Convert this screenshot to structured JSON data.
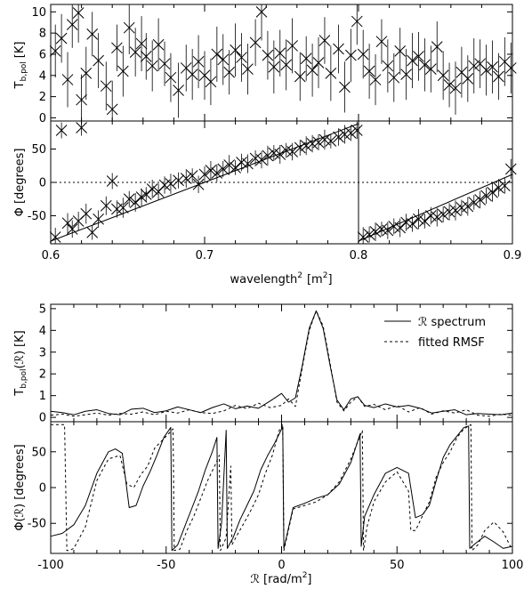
{
  "chart_data": [
    {
      "type": "scatter",
      "panel": "top-upper",
      "xlim": [
        0.6,
        0.9
      ],
      "ylim": [
        -0.3,
        10.7
      ],
      "yticks": [
        0,
        2,
        4,
        6,
        8,
        10
      ],
      "ylabel": "T",
      "ylabel_sub": "b,pol",
      "ylabel_unit": "[K]",
      "marker": "x",
      "error_bars": true,
      "series": [
        {
          "x": [
            0.603,
            0.607,
            0.611,
            0.614,
            0.618,
            0.62,
            0.623,
            0.627,
            0.631,
            0.636,
            0.64,
            0.643,
            0.647,
            0.651,
            0.655,
            0.659,
            0.662,
            0.666,
            0.67,
            0.674,
            0.678,
            0.683,
            0.688,
            0.692,
            0.696,
            0.7,
            0.704,
            0.708,
            0.712,
            0.716,
            0.72,
            0.724,
            0.728,
            0.733,
            0.737,
            0.741,
            0.745,
            0.749,
            0.753,
            0.757,
            0.762,
            0.766,
            0.77,
            0.774,
            0.778,
            0.782,
            0.787,
            0.791,
            0.795,
            0.799,
            0.803,
            0.807,
            0.811,
            0.815,
            0.819,
            0.823,
            0.827,
            0.831,
            0.835,
            0.839,
            0.843,
            0.847,
            0.851,
            0.855,
            0.859,
            0.863,
            0.867,
            0.871,
            0.875,
            0.879,
            0.883,
            0.887,
            0.891,
            0.895,
            0.899
          ],
          "y": [
            6.3,
            7.5,
            3.6,
            8.8,
            9.9,
            1.7,
            4.2,
            7.9,
            5.4,
            3.0,
            0.8,
            6.6,
            4.4,
            8.5,
            6.2,
            7.0,
            5.8,
            4.9,
            6.9,
            5.1,
            3.8,
            2.6,
            4.7,
            4.1,
            5.3,
            4.0,
            3.4,
            6.0,
            5.5,
            4.3,
            6.4,
            5.7,
            4.6,
            7.1,
            10.0,
            5.9,
            4.8,
            6.1,
            5.0,
            6.8,
            3.9,
            5.6,
            4.5,
            5.2,
            7.3,
            4.2,
            6.5,
            2.9,
            5.9,
            9.1,
            6.0,
            4.4,
            3.6,
            7.2,
            4.9,
            3.8,
            6.3,
            4.1,
            5.4,
            5.8,
            5.0,
            4.6,
            6.7,
            4.0,
            3.1,
            2.8,
            4.3,
            3.7,
            4.9,
            5.1,
            4.5,
            4.8,
            3.9,
            5.3,
            4.7
          ],
          "err": [
            2.5,
            2.3,
            2.6,
            2.2,
            2.8,
            2.4,
            2.5,
            2.1,
            2.6,
            2.3,
            2.7,
            2.2,
            2.4,
            2.5,
            2.3,
            2.6,
            2.2,
            2.4,
            2.5,
            2.1,
            2.3,
            2.6,
            2.2,
            2.4,
            2.5,
            2.3,
            2.2,
            2.6,
            2.4,
            2.1,
            2.5,
            2.3,
            2.4,
            2.2,
            2.7,
            2.3,
            2.5,
            2.2,
            2.4,
            2.6,
            2.3,
            2.1,
            2.5,
            2.4,
            2.2,
            2.6,
            2.3,
            2.4,
            2.5,
            2.2,
            2.3,
            2.6,
            2.4,
            2.1,
            2.5,
            2.3,
            2.2,
            2.4,
            2.6,
            2.3,
            2.5,
            2.2,
            2.4,
            2.3,
            2.1,
            2.5,
            2.4,
            2.2,
            2.6,
            2.3,
            2.4,
            2.5,
            2.2,
            2.3,
            2.4
          ]
        }
      ]
    },
    {
      "type": "scatter",
      "panel": "top-lower",
      "xlim": [
        0.6,
        0.9
      ],
      "ylim": [
        -92,
        92
      ],
      "xticks": [
        0.6,
        0.7,
        0.8,
        0.9
      ],
      "xtick_labels": [
        "0.6",
        "0.7",
        "0.8",
        "0.9"
      ],
      "yticks": [
        -50,
        0,
        50
      ],
      "xlabel": "wavelength",
      "xlabel_sup": "2",
      "xlabel_unit_open": "[m",
      "xlabel_unit_sup": "2",
      "xlabel_unit_close": "]",
      "ylabel": "Φ  [degrees]",
      "zero_line": "dotted",
      "marker": "x",
      "error_bars": true,
      "fit_line_x": [
        0.6,
        0.8,
        0.8,
        0.9
      ],
      "fit_line_y": [
        -88,
        88,
        -88,
        12
      ],
      "series": [
        {
          "x": [
            0.603,
            0.607,
            0.611,
            0.614,
            0.618,
            0.62,
            0.623,
            0.627,
            0.631,
            0.636,
            0.64,
            0.643,
            0.647,
            0.651,
            0.655,
            0.659,
            0.662,
            0.666,
            0.67,
            0.674,
            0.678,
            0.683,
            0.688,
            0.692,
            0.696,
            0.7,
            0.704,
            0.708,
            0.712,
            0.716,
            0.72,
            0.724,
            0.728,
            0.733,
            0.737,
            0.741,
            0.745,
            0.749,
            0.753,
            0.757,
            0.762,
            0.766,
            0.77,
            0.774,
            0.778,
            0.782,
            0.787,
            0.791,
            0.795,
            0.799,
            0.803,
            0.807,
            0.811,
            0.815,
            0.819,
            0.823,
            0.827,
            0.831,
            0.835,
            0.839,
            0.843,
            0.847,
            0.851,
            0.855,
            0.859,
            0.863,
            0.867,
            0.871,
            0.875,
            0.879,
            0.883,
            0.887,
            0.891,
            0.895,
            0.899
          ],
          "y": [
            -82,
            78,
            -61,
            -70,
            -58,
            82,
            -47,
            -75,
            -55,
            -35,
            2,
            -40,
            -38,
            -25,
            -30,
            -22,
            -18,
            -10,
            -14,
            -4,
            -2,
            3,
            6,
            10,
            -3,
            12,
            18,
            14,
            20,
            26,
            22,
            30,
            28,
            36,
            34,
            40,
            44,
            42,
            48,
            46,
            52,
            55,
            58,
            60,
            64,
            62,
            68,
            72,
            74,
            78,
            -82,
            -78,
            -74,
            -70,
            -72,
            -66,
            -68,
            -60,
            -62,
            -55,
            -58,
            -50,
            -52,
            -48,
            -44,
            -42,
            -38,
            -36,
            -30,
            -26,
            -20,
            -15,
            -8,
            -5,
            20
          ],
          "err": [
            14,
            12,
            15,
            13,
            14,
            12,
            15,
            11,
            13,
            14,
            12,
            13,
            15,
            12,
            14,
            13,
            11,
            14,
            12,
            13,
            15,
            12,
            14,
            11,
            13,
            12,
            14,
            13,
            12,
            15,
            11,
            13,
            14,
            12,
            13,
            15,
            12,
            14,
            11,
            13,
            12,
            14,
            13,
            12,
            15,
            11,
            13,
            14,
            12,
            13,
            15,
            12,
            14,
            11,
            13,
            12,
            14,
            13,
            12,
            15,
            11,
            13,
            14,
            12,
            13,
            15,
            12,
            14,
            11,
            13,
            12,
            14,
            13,
            12,
            15
          ]
        }
      ]
    },
    {
      "type": "line",
      "panel": "bottom-upper",
      "xlim": [
        -100,
        100
      ],
      "ylim": [
        -0.2,
        5.2
      ],
      "yticks": [
        0,
        1,
        2,
        3,
        4,
        5
      ],
      "ylabel": "T",
      "ylabel_sub": "b,pol",
      "ylabel_arg": "(ℛ)",
      "ylabel_unit": "[K]",
      "legend_placement": "top-right",
      "series": [
        {
          "name": "ℛ spectrum",
          "style": "solid",
          "x": [
            -100,
            -95,
            -90,
            -85,
            -80,
            -75,
            -70,
            -65,
            -60,
            -55,
            -50,
            -45,
            -40,
            -35,
            -30,
            -25,
            -20,
            -15,
            -10,
            -5,
            0,
            3,
            6,
            9,
            12,
            15,
            18,
            21,
            24,
            27,
            30,
            33,
            36,
            40,
            45,
            50,
            55,
            60,
            65,
            70,
            75,
            80,
            85,
            90,
            95,
            100
          ],
          "y": [
            0.28,
            0.22,
            0.12,
            0.28,
            0.35,
            0.18,
            0.12,
            0.38,
            0.42,
            0.22,
            0.3,
            0.48,
            0.35,
            0.22,
            0.45,
            0.62,
            0.4,
            0.52,
            0.42,
            0.75,
            1.1,
            0.7,
            0.9,
            2.4,
            4.1,
            4.9,
            4.1,
            2.4,
            0.8,
            0.35,
            0.85,
            0.95,
            0.55,
            0.45,
            0.62,
            0.48,
            0.55,
            0.42,
            0.2,
            0.28,
            0.35,
            0.12,
            0.18,
            0.15,
            0.12,
            0.2
          ]
        },
        {
          "name": "fitted RMSF",
          "style": "dashed",
          "x": [
            -100,
            -95,
            -90,
            -85,
            -80,
            -75,
            -70,
            -65,
            -60,
            -55,
            -50,
            -45,
            -40,
            -35,
            -30,
            -25,
            -20,
            -15,
            -10,
            -5,
            0,
            3,
            6,
            9,
            12,
            15,
            18,
            21,
            24,
            27,
            30,
            33,
            36,
            40,
            45,
            50,
            55,
            60,
            65,
            70,
            75,
            80,
            85,
            90,
            95,
            100
          ],
          "y": [
            0.1,
            0.15,
            0.05,
            0.12,
            0.2,
            0.1,
            0.18,
            0.15,
            0.25,
            0.12,
            0.28,
            0.2,
            0.35,
            0.22,
            0.18,
            0.3,
            0.55,
            0.4,
            0.65,
            0.45,
            0.55,
            0.85,
            0.5,
            2.3,
            4.0,
            4.9,
            4.2,
            2.5,
            0.7,
            0.3,
            0.7,
            0.95,
            0.5,
            0.6,
            0.35,
            0.55,
            0.25,
            0.45,
            0.15,
            0.3,
            0.2,
            0.35,
            0.1,
            0.05,
            0.15,
            0.1
          ]
        }
      ]
    },
    {
      "type": "line",
      "panel": "bottom-lower",
      "xlim": [
        -100,
        100
      ],
      "ylim": [
        -92,
        92
      ],
      "xticks": [
        -100,
        -50,
        0,
        50,
        100
      ],
      "yticks": [
        -50,
        0,
        50
      ],
      "xlabel": "ℛ [rad/m",
      "xlabel_sup": "2",
      "xlabel_close": "]",
      "ylabel": "Φ(ℛ) [degrees]",
      "series": [
        {
          "name": "ℛ spectrum",
          "style": "solid",
          "x": [
            -100,
            -95,
            -90,
            -85,
            -80,
            -75,
            -72,
            -69,
            -66,
            -63,
            -60,
            -57,
            -54,
            -51,
            -48,
            -47.5,
            -45,
            -42,
            -39,
            -36,
            -33,
            -30,
            -28,
            -27.5,
            -26,
            -24,
            -23.5,
            -21,
            -18,
            -15,
            -12,
            -9,
            -6,
            -3,
            0.5,
            1,
            5,
            10,
            15,
            20,
            25,
            30,
            34,
            34.5,
            36,
            40,
            45,
            50,
            55,
            58,
            61,
            64,
            67,
            70,
            73,
            76,
            79,
            81,
            81.5,
            84,
            88,
            92,
            96,
            100
          ],
          "y": [
            -68,
            -64,
            -52,
            -25,
            20,
            50,
            54,
            48,
            -28,
            -25,
            2,
            22,
            45,
            70,
            84,
            -88,
            -80,
            -55,
            -30,
            -5,
            25,
            50,
            70,
            -85,
            -50,
            80,
            -85,
            -70,
            -45,
            -25,
            -5,
            25,
            45,
            62,
            85,
            -85,
            -28,
            -22,
            -15,
            -10,
            5,
            35,
            75,
            -82,
            -40,
            -10,
            20,
            28,
            20,
            -42,
            -38,
            -25,
            10,
            42,
            60,
            72,
            84,
            86,
            -85,
            -78,
            -68,
            -76,
            -85,
            -82
          ]
        },
        {
          "name": "fitted RMSF",
          "style": "dashed",
          "x": [
            -100,
            -94,
            -93,
            -92,
            -90,
            -85,
            -80,
            -75,
            -70,
            -67,
            -64,
            -61,
            -58,
            -55,
            -52,
            -49,
            -47,
            -46.5,
            -44,
            -41,
            -38,
            -35,
            -32,
            -29,
            -27,
            -26.5,
            -24,
            -22,
            -21.5,
            -19,
            -16,
            -13,
            -10,
            -7,
            -4,
            -1,
            0.5,
            1,
            5,
            10,
            15,
            20,
            25,
            30,
            35,
            35.5,
            37,
            40,
            45,
            50,
            55,
            56,
            58,
            61,
            64,
            67,
            70,
            73,
            76,
            79,
            82,
            82.5,
            85,
            88,
            92,
            96,
            100
          ],
          "y": [
            88,
            88,
            -88,
            -88,
            -85,
            -55,
            10,
            40,
            45,
            5,
            0,
            18,
            30,
            55,
            65,
            75,
            82,
            -88,
            -86,
            -60,
            -40,
            -15,
            10,
            30,
            45,
            -88,
            -70,
            30,
            -80,
            -65,
            -48,
            -30,
            -10,
            20,
            45,
            80,
            88,
            -88,
            -30,
            -25,
            -20,
            -10,
            8,
            40,
            80,
            -88,
            -55,
            -20,
            8,
            22,
            -5,
            -60,
            -60,
            -40,
            -20,
            15,
            35,
            50,
            70,
            82,
            88,
            -88,
            -80,
            -60,
            -48,
            -62,
            -88
          ]
        }
      ]
    }
  ]
}
